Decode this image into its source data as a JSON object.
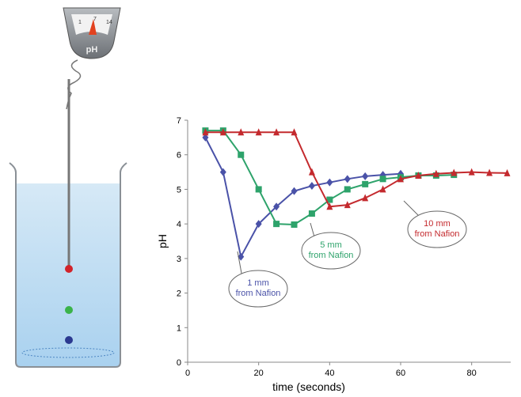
{
  "illustration": {
    "meter_label": "pH",
    "meter_ticks": [
      "1",
      "7",
      "14"
    ]
  },
  "chart_data": {
    "type": "line",
    "x_label": "time (seconds)",
    "y_label": "pH",
    "xlim": [
      0,
      91
    ],
    "xticks": [
      0,
      20,
      40,
      60,
      80
    ],
    "ylim": [
      0,
      7
    ],
    "yticks": [
      0,
      1,
      2,
      3,
      4,
      5,
      6,
      7
    ],
    "grid": false,
    "series": [
      {
        "name": "1 mm\nfrom Nafion",
        "color": "#4a52a8",
        "marker": "diamond",
        "x": [
          5,
          10,
          15,
          20,
          25,
          30,
          35,
          40,
          45,
          50,
          55,
          60
        ],
        "values": [
          6.5,
          5.5,
          3.05,
          4.0,
          4.5,
          4.95,
          5.1,
          5.2,
          5.3,
          5.38,
          5.42,
          5.45
        ]
      },
      {
        "name": "5 mm\nfrom Nafion",
        "color": "#2ea36b",
        "marker": "square",
        "x": [
          5,
          10,
          15,
          20,
          25,
          30,
          35,
          40,
          45,
          50,
          55,
          60,
          65,
          70,
          75
        ],
        "values": [
          6.7,
          6.7,
          6.0,
          5.0,
          4.0,
          3.98,
          4.3,
          4.7,
          5.0,
          5.15,
          5.3,
          5.35,
          5.4,
          5.4,
          5.42
        ]
      },
      {
        "name": "10 mm\nfrom Nafion",
        "color": "#c42a2e",
        "marker": "triangle",
        "x": [
          5,
          10,
          15,
          20,
          25,
          30,
          35,
          40,
          45,
          50,
          55,
          60,
          65,
          70,
          75,
          80,
          85,
          90
        ],
        "values": [
          6.65,
          6.65,
          6.65,
          6.65,
          6.65,
          6.65,
          5.5,
          4.5,
          4.55,
          4.75,
          5.0,
          5.3,
          5.4,
          5.45,
          5.48,
          5.5,
          5.48,
          5.47
        ]
      }
    ]
  }
}
